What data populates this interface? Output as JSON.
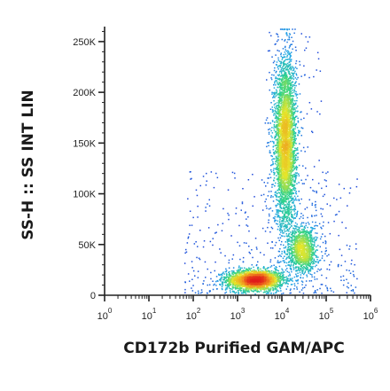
{
  "chart_data": {
    "type": "scatter",
    "style": "density dot plot (flow cytometry)",
    "xlabel": "CD172b Purified GAM/APC",
    "ylabel": "SS-H :: SS INT LIN",
    "x_scale": "log",
    "xlim": [
      1,
      1000000
    ],
    "ylim": [
      0,
      262144
    ],
    "x_ticks": [
      {
        "value": 1,
        "base": "10",
        "exp": "0"
      },
      {
        "value": 10,
        "base": "10",
        "exp": "1"
      },
      {
        "value": 100,
        "base": "10",
        "exp": "2"
      },
      {
        "value": 1000,
        "base": "10",
        "exp": "3"
      },
      {
        "value": 10000,
        "base": "10",
        "exp": "4"
      },
      {
        "value": 100000,
        "base": "10",
        "exp": "5"
      },
      {
        "value": 1000000,
        "base": "10",
        "exp": "6"
      }
    ],
    "y_ticks": [
      {
        "value": 0,
        "label": "0"
      },
      {
        "value": 50000,
        "label": "50K"
      },
      {
        "value": 100000,
        "label": "100K"
      },
      {
        "value": 150000,
        "label": "150K"
      },
      {
        "value": 200000,
        "label": "200K"
      },
      {
        "value": 250000,
        "label": "250K"
      }
    ],
    "grid": false,
    "colormap": [
      "#1f2bd6",
      "#22a6e6",
      "#2ed38a",
      "#e6e62a",
      "#f28a1e",
      "#e01b1b"
    ],
    "populations": [
      {
        "center_x": 2500,
        "center_y": 15000,
        "spread_x_decades": 0.32,
        "spread_y": 5000,
        "count": 2300,
        "peak_color": "#e01b1b"
      },
      {
        "center_x": 12000,
        "center_y": 150000,
        "spread_x_decades": 0.12,
        "spread_y": 42000,
        "count": 3600,
        "peak_color": "#e6e62a"
      },
      {
        "center_x": 30000,
        "center_y": 45000,
        "spread_x_decades": 0.16,
        "spread_y": 12000,
        "count": 1100,
        "peak_color": "#f28a1e"
      }
    ]
  }
}
